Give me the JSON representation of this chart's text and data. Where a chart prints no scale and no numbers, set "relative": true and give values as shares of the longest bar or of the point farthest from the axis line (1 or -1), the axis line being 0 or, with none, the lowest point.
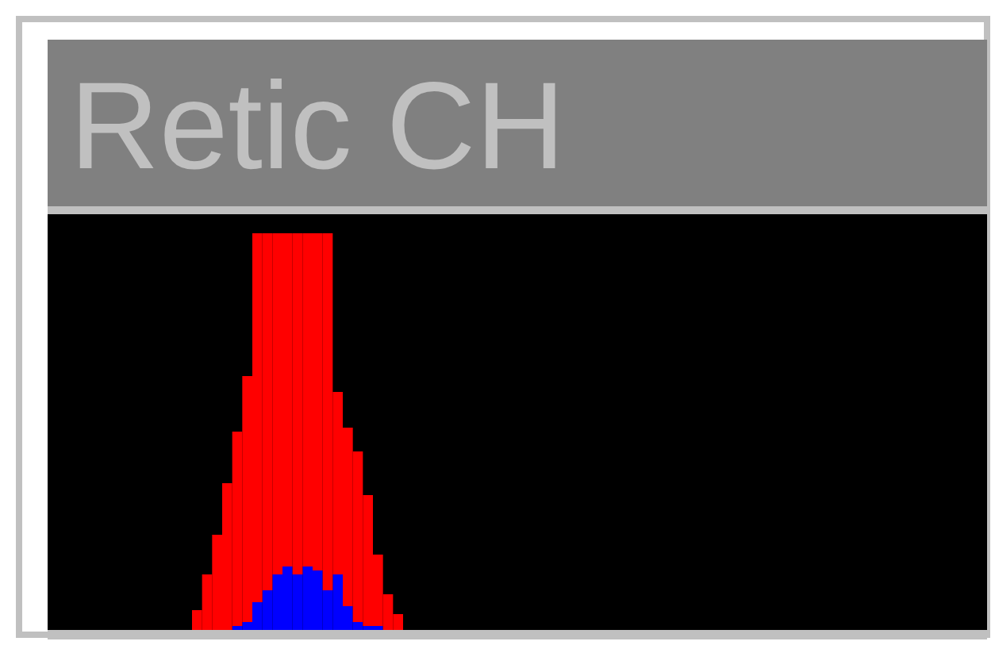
{
  "chart_data": {
    "type": "bar",
    "title": "Retic CH",
    "relative": true,
    "stacked": true,
    "categories": [
      null,
      null,
      null,
      null,
      null,
      null,
      null,
      null,
      null,
      null,
      null,
      null,
      null,
      null,
      null,
      null,
      null,
      null,
      null,
      null,
      null
    ],
    "series": [
      {
        "color": "#0000ff",
        "values": [
          0,
          0,
          0,
          0,
          0.01,
          0.02,
          0.07,
          0.1,
          0.14,
          0.16,
          0.14,
          0.16,
          0.15,
          0.1,
          0.14,
          0.06,
          0.02,
          0.01,
          0.01,
          0,
          0
        ]
      },
      {
        "color": "#ff0000",
        "values": [
          0.05,
          0.14,
          0.24,
          0.37,
          0.49,
          0.62,
          0.93,
          0.9,
          0.86,
          0.84,
          0.86,
          0.84,
          0.85,
          0.9,
          0.46,
          0.45,
          0.43,
          0.33,
          0.18,
          0.09,
          0.04
        ]
      }
    ]
  }
}
